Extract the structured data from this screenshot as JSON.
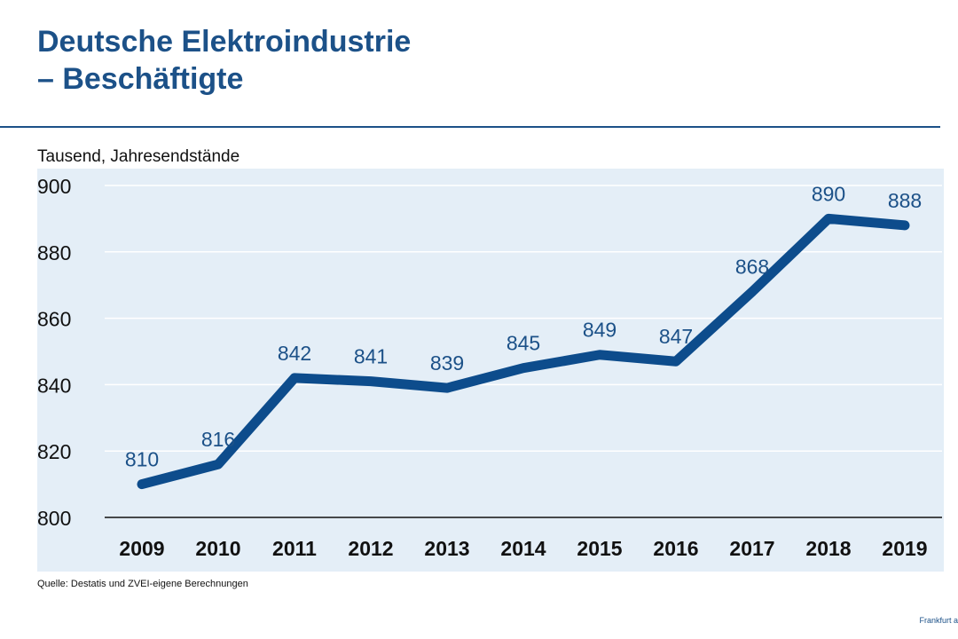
{
  "header": {
    "title_line1": "Deutsche Elektroindustrie",
    "title_line2": "– Beschäftigte"
  },
  "units_label": "Tausend, Jahresendstände",
  "source": "Quelle: Destatis und ZVEI-eigene Berechnungen",
  "footer_note": "Frankfurt a",
  "colors": {
    "accent": "#1c5188",
    "plot_background": "#e4eef7",
    "line": "#0d4c8c"
  },
  "chart_data": {
    "type": "line",
    "title": "Deutsche Elektroindustrie – Beschäftigte",
    "ylabel": "Tausend, Jahresendstände",
    "xlabel": "",
    "categories": [
      "2009",
      "2010",
      "2011",
      "2012",
      "2013",
      "2014",
      "2015",
      "2016",
      "2017",
      "2018",
      "2019"
    ],
    "values": [
      810,
      816,
      842,
      841,
      839,
      845,
      849,
      847,
      868,
      890,
      888
    ],
    "ylim": [
      800,
      900
    ],
    "yticks": [
      800,
      820,
      840,
      860,
      880,
      900
    ],
    "grid": true,
    "legend": false
  }
}
